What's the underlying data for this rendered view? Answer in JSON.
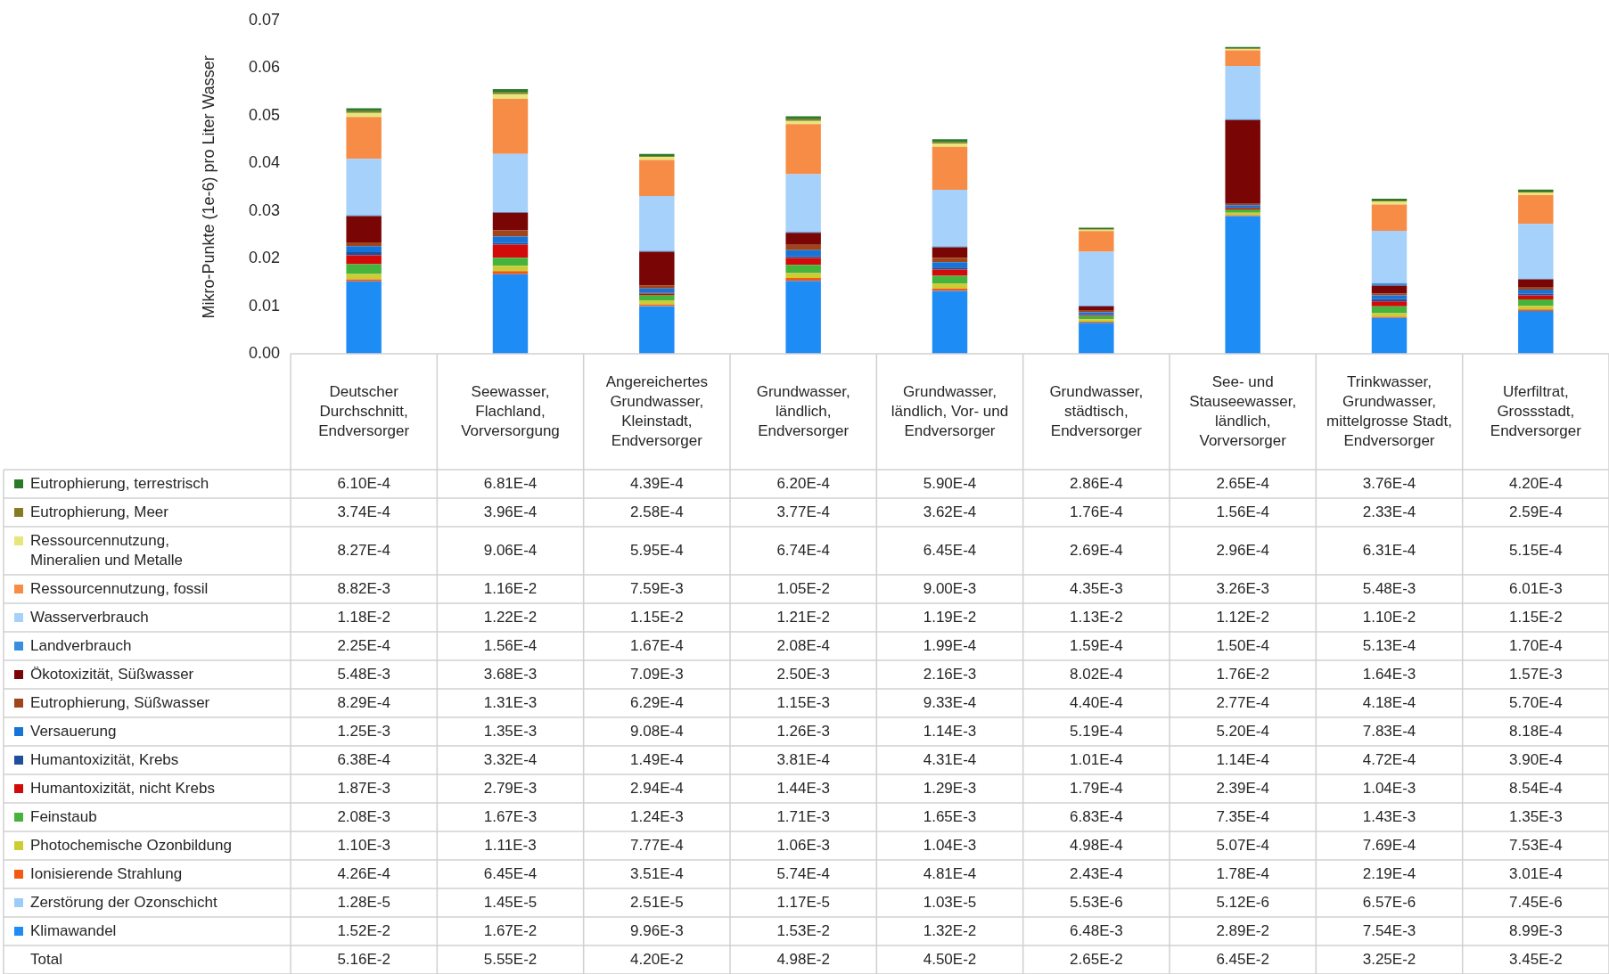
{
  "chart_data": {
    "type": "bar",
    "stacked": true,
    "ylabel": "Mikro-Punkte (1e-6) pro Liter Wasser",
    "categories": [
      "Deutscher Durchschnitt, Endversorger",
      "Seewasser, Flachland, Vorversorgung",
      "Angereichertes Grundwasser, Kleinstadt, Endversorger",
      "Grundwasser, ländlich, Endversorger",
      "Grundwasser, ländlich, Vor- und Endversorger",
      "Grundwasser, städtisch, Endversorger",
      "See- und Stauseewasser, ländlich, Vorversorger",
      "Trinkwasser, Grundwasser, mittelgrosse Stadt, Endversorger",
      "Uferfiltrat, Grossstadt, Endversorger"
    ],
    "ylim": [
      0,
      0.07
    ],
    "yticks": [
      {
        "value": 0,
        "label": "0.00"
      },
      {
        "value": 0.01,
        "label": "0.01"
      },
      {
        "value": 0.02,
        "label": "0.02"
      },
      {
        "value": 0.03,
        "label": "0.03"
      },
      {
        "value": 0.04,
        "label": "0.04"
      },
      {
        "value": 0.05,
        "label": "0.05"
      },
      {
        "value": 0.06,
        "label": "0.06"
      },
      {
        "value": 0.07,
        "label": "0.07"
      }
    ],
    "grid": false,
    "legend": "bottom",
    "series": [
      {
        "name": "Klimawandel",
        "color": "#1e8cf5",
        "values": [
          0.0152,
          0.0167,
          0.00996,
          0.0153,
          0.0132,
          0.00648,
          0.0289,
          0.00754,
          0.00899
        ],
        "value_labels": [
          "1.52E-2",
          "1.67E-2",
          "9.96E-3",
          "1.53E-2",
          "1.32E-2",
          "6.48E-3",
          "2.89E-2",
          "7.54E-3",
          "8.99E-3"
        ]
      },
      {
        "name": "Zerstörung der Ozonschicht",
        "color": "#9ccdfa",
        "values": [
          1.28e-05,
          1.45e-05,
          2.51e-05,
          1.17e-05,
          1.03e-05,
          5.53e-06,
          5.12e-06,
          6.57e-06,
          7.45e-06
        ],
        "value_labels": [
          "1.28E-5",
          "1.45E-5",
          "2.51E-5",
          "1.17E-5",
          "1.03E-5",
          "5.53E-6",
          "5.12E-6",
          "6.57E-6",
          "7.45E-6"
        ]
      },
      {
        "name": "Ionisierende Strahlung",
        "color": "#f25a14",
        "values": [
          0.000426,
          0.000645,
          0.000351,
          0.000574,
          0.000481,
          0.000243,
          0.000178,
          0.000219,
          0.000301
        ],
        "value_labels": [
          "4.26E-4",
          "6.45E-4",
          "3.51E-4",
          "5.74E-4",
          "4.81E-4",
          "2.43E-4",
          "1.78E-4",
          "2.19E-4",
          "3.01E-4"
        ]
      },
      {
        "name": "Photochemische Ozonbildung",
        "color": "#cccc33",
        "values": [
          0.0011,
          0.00111,
          0.000777,
          0.00106,
          0.00104,
          0.000498,
          0.000507,
          0.000769,
          0.000753
        ],
        "value_labels": [
          "1.10E-3",
          "1.11E-3",
          "7.77E-4",
          "1.06E-3",
          "1.04E-3",
          "4.98E-4",
          "5.07E-4",
          "7.69E-4",
          "7.53E-4"
        ]
      },
      {
        "name": "Feinstaub",
        "color": "#46b43c",
        "values": [
          0.00208,
          0.00167,
          0.00124,
          0.00171,
          0.00165,
          0.000683,
          0.000735,
          0.00143,
          0.00135
        ],
        "value_labels": [
          "2.08E-3",
          "1.67E-3",
          "1.24E-3",
          "1.71E-3",
          "1.65E-3",
          "6.83E-4",
          "7.35E-4",
          "1.43E-3",
          "1.35E-3"
        ]
      },
      {
        "name": "Humantoxizität, nicht Krebs",
        "color": "#d20a0a",
        "values": [
          0.00187,
          0.00279,
          0.000294,
          0.00144,
          0.00129,
          0.000179,
          0.000239,
          0.00104,
          0.000854
        ],
        "value_labels": [
          "1.87E-3",
          "2.79E-3",
          "2.94E-4",
          "1.44E-3",
          "1.29E-3",
          "1.79E-4",
          "2.39E-4",
          "1.04E-3",
          "8.54E-4"
        ]
      },
      {
        "name": "Humantoxizität, Krebs",
        "color": "#1f4f9a",
        "values": [
          0.000638,
          0.000332,
          0.000149,
          0.000381,
          0.000431,
          0.000101,
          0.000114,
          0.000472,
          0.00039
        ],
        "value_labels": [
          "6.38E-4",
          "3.32E-4",
          "1.49E-4",
          "3.81E-4",
          "4.31E-4",
          "1.01E-4",
          "1.14E-4",
          "4.72E-4",
          "3.90E-4"
        ]
      },
      {
        "name": "Versauerung",
        "color": "#1674d8",
        "values": [
          0.00125,
          0.00135,
          0.000908,
          0.00126,
          0.00114,
          0.000519,
          0.00052,
          0.000783,
          0.000818
        ],
        "value_labels": [
          "1.25E-3",
          "1.35E-3",
          "9.08E-4",
          "1.26E-3",
          "1.14E-3",
          "5.19E-4",
          "5.20E-4",
          "7.83E-4",
          "8.18E-4"
        ]
      },
      {
        "name": "Eutrophierung, Süßwasser",
        "color": "#a0441c",
        "values": [
          0.000829,
          0.00131,
          0.000629,
          0.00115,
          0.000933,
          0.00044,
          0.000277,
          0.000418,
          0.00057
        ],
        "value_labels": [
          "8.29E-4",
          "1.31E-3",
          "6.29E-4",
          "1.15E-3",
          "9.33E-4",
          "4.40E-4",
          "2.77E-4",
          "4.18E-4",
          "5.70E-4"
        ]
      },
      {
        "name": "Ökotoxizität, Süßwasser",
        "color": "#7a0505",
        "values": [
          0.00548,
          0.00368,
          0.00709,
          0.0025,
          0.00216,
          0.000802,
          0.0176,
          0.00164,
          0.00157
        ],
        "value_labels": [
          "5.48E-3",
          "3.68E-3",
          "7.09E-3",
          "2.50E-3",
          "2.16E-3",
          "8.02E-4",
          "1.76E-2",
          "1.64E-3",
          "1.57E-3"
        ]
      },
      {
        "name": "Landverbrauch",
        "color": "#3a8ede",
        "values": [
          0.000225,
          0.000156,
          0.000167,
          0.000208,
          0.000199,
          0.000159,
          0.00015,
          0.000513,
          0.00017
        ],
        "value_labels": [
          "2.25E-4",
          "1.56E-4",
          "1.67E-4",
          "2.08E-4",
          "1.99E-4",
          "1.59E-4",
          "1.50E-4",
          "5.13E-4",
          "1.70E-4"
        ]
      },
      {
        "name": "Wasserverbrauch",
        "color": "#a6d1fa",
        "values": [
          0.0118,
          0.0122,
          0.0115,
          0.0121,
          0.0119,
          0.0113,
          0.0112,
          0.011,
          0.0115
        ],
        "value_labels": [
          "1.18E-2",
          "1.22E-2",
          "1.15E-2",
          "1.21E-2",
          "1.19E-2",
          "1.13E-2",
          "1.12E-2",
          "1.10E-2",
          "1.15E-2"
        ]
      },
      {
        "name": "Ressourcennutzung, fossil",
        "color": "#f78c46",
        "values": [
          0.00882,
          0.0116,
          0.00759,
          0.0105,
          0.009,
          0.00435,
          0.00326,
          0.00548,
          0.00601
        ],
        "value_labels": [
          "8.82E-3",
          "1.16E-2",
          "7.59E-3",
          "1.05E-2",
          "9.00E-3",
          "4.35E-3",
          "3.26E-3",
          "5.48E-3",
          "6.01E-3"
        ]
      },
      {
        "name": "Ressourcennutzung, Mineralien und Metalle",
        "color": "#e6e67a",
        "values": [
          0.000827,
          0.000906,
          0.000595,
          0.000674,
          0.000645,
          0.000269,
          0.000296,
          0.000631,
          0.000515
        ],
        "value_labels": [
          "8.27E-4",
          "9.06E-4",
          "5.95E-4",
          "6.74E-4",
          "6.45E-4",
          "2.69E-4",
          "2.96E-4",
          "6.31E-4",
          "5.15E-4"
        ]
      },
      {
        "name": "Eutrophierung, Meer",
        "color": "#877a24",
        "values": [
          0.000374,
          0.000396,
          0.000258,
          0.000377,
          0.000362,
          0.000176,
          0.000156,
          0.000233,
          0.000259
        ],
        "value_labels": [
          "3.74E-4",
          "3.96E-4",
          "2.58E-4",
          "3.77E-4",
          "3.62E-4",
          "1.76E-4",
          "1.56E-4",
          "2.33E-4",
          "2.59E-4"
        ]
      },
      {
        "name": "Eutrophierung, terrestrisch",
        "color": "#2a7a2a",
        "values": [
          0.00061,
          0.000681,
          0.000439,
          0.00062,
          0.00059,
          0.000286,
          0.000265,
          0.000376,
          0.00042
        ],
        "value_labels": [
          "6.10E-4",
          "6.81E-4",
          "4.39E-4",
          "6.20E-4",
          "5.90E-4",
          "2.86E-4",
          "2.65E-4",
          "3.76E-4",
          "4.20E-4"
        ]
      }
    ],
    "annotations": [
      "Total",
      "5.16E-2",
      "5.55E-2",
      "4.20E-2",
      "4.98E-2",
      "4.50E-2",
      "2.65E-2",
      "6.45E-2",
      "3.25E-2",
      "3.45E-2"
    ]
  }
}
